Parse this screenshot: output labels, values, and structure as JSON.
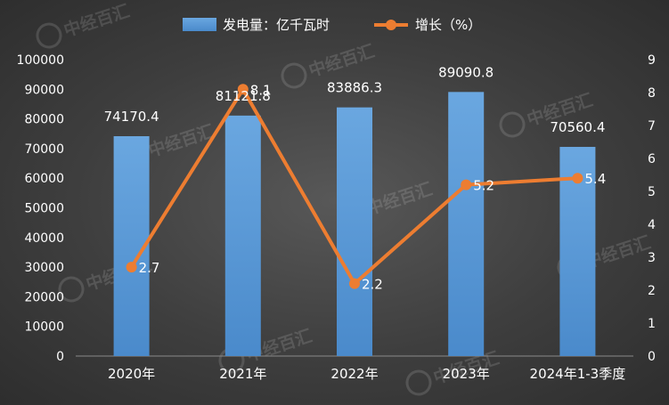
{
  "chart_data": {
    "type": "bar",
    "categories": [
      "2020年",
      "2021年",
      "2022年",
      "2023年",
      "2024年1-3季度"
    ],
    "series": [
      {
        "name": "发电量：亿千瓦时",
        "type": "bar",
        "axis": "left",
        "color": "#5b9bd5",
        "values": [
          74170.4,
          81121.8,
          83886.3,
          89090.8,
          70560.4
        ],
        "labels": [
          "74170.4",
          "81121.8",
          "83886.3",
          "89090.8",
          "70560.4"
        ]
      },
      {
        "name": "增长（%）",
        "type": "line",
        "axis": "right",
        "color": "#ed7d31",
        "values": [
          2.7,
          8.1,
          2.2,
          5.2,
          5.4
        ],
        "labels": [
          "2.7",
          "8.1",
          "2.2",
          "5.2",
          "5.4"
        ]
      }
    ],
    "y_left": {
      "ylim": [
        0,
        100000
      ],
      "ticks": [
        "0",
        "10000",
        "20000",
        "30000",
        "40000",
        "50000",
        "60000",
        "70000",
        "80000",
        "90000",
        "100000"
      ]
    },
    "y_right": {
      "ylim": [
        0,
        9
      ],
      "ticks": [
        "0",
        "1",
        "2",
        "3",
        "4",
        "5",
        "6",
        "7",
        "8",
        "9"
      ]
    },
    "legend_position": "top-center",
    "grid": false,
    "watermark": "中经百汇"
  }
}
